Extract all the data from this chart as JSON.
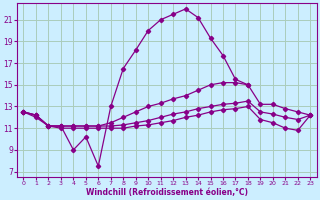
{
  "background_color": "#cceeff",
  "grid_color": "#aaccbb",
  "line_color": "#880088",
  "xlabel": "Windchill (Refroidissement éolien,°C)",
  "xlim": [
    -0.5,
    23.5
  ],
  "ylim": [
    6.5,
    22.5
  ],
  "yticks": [
    7,
    9,
    11,
    13,
    15,
    17,
    19,
    21
  ],
  "xticks": [
    0,
    1,
    2,
    3,
    4,
    5,
    6,
    7,
    8,
    9,
    10,
    11,
    12,
    13,
    14,
    15,
    16,
    17,
    18,
    19,
    20,
    21,
    22,
    23
  ],
  "s1_x": [
    0,
    1,
    2,
    3,
    4,
    5,
    6,
    7,
    8,
    9,
    10,
    11,
    12,
    13,
    14,
    15,
    16,
    17,
    18
  ],
  "s1_y": [
    12.5,
    12.2,
    11.2,
    11.2,
    9.0,
    10.2,
    7.5,
    13.0,
    16.5,
    18.2,
    20.0,
    21.0,
    21.5,
    22.0,
    21.2,
    19.3,
    17.7,
    15.5,
    15.0
  ],
  "s2_x": [
    0,
    1,
    2,
    3,
    4,
    5,
    6,
    7,
    8,
    9,
    10,
    11,
    12,
    13,
    14,
    15,
    16,
    17,
    18,
    19,
    20,
    21,
    22,
    23
  ],
  "s2_y": [
    12.5,
    12.2,
    11.2,
    11.2,
    11.2,
    11.2,
    11.2,
    11.5,
    12.0,
    12.5,
    13.0,
    13.3,
    13.7,
    14.0,
    14.5,
    15.0,
    15.2,
    15.2,
    15.0,
    13.2,
    13.2,
    12.8,
    12.5,
    12.2
  ],
  "s3_x": [
    0,
    1,
    2,
    3,
    4,
    5,
    6,
    7,
    8,
    9,
    10,
    11,
    12,
    13,
    14,
    15,
    16,
    17,
    18,
    19,
    20,
    21,
    22,
    23
  ],
  "s3_y": [
    12.5,
    12.2,
    11.2,
    11.2,
    11.2,
    11.2,
    11.2,
    11.2,
    11.3,
    11.5,
    11.7,
    12.0,
    12.3,
    12.5,
    12.8,
    13.0,
    13.2,
    13.3,
    13.5,
    12.5,
    12.3,
    12.0,
    11.8,
    12.2
  ],
  "s4_x": [
    0,
    1,
    2,
    3,
    4,
    5,
    6,
    7,
    8,
    9,
    10,
    11,
    12,
    13,
    14,
    15,
    16,
    17,
    18,
    19,
    20,
    21,
    22,
    23
  ],
  "s4_y": [
    12.5,
    12.0,
    11.2,
    11.0,
    11.0,
    11.0,
    11.0,
    11.0,
    11.0,
    11.2,
    11.3,
    11.5,
    11.7,
    12.0,
    12.2,
    12.5,
    12.7,
    12.8,
    13.0,
    11.8,
    11.5,
    11.0,
    10.8,
    12.2
  ]
}
